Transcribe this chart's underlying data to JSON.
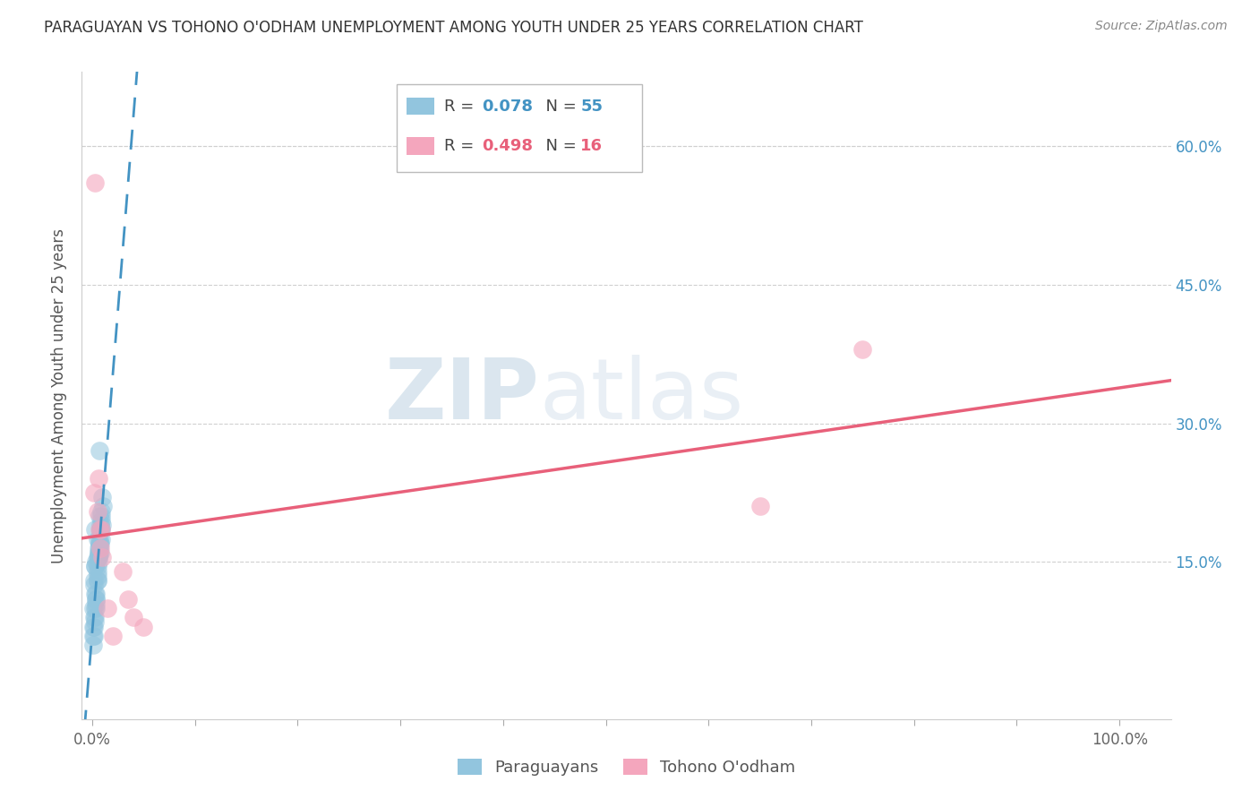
{
  "title": "PARAGUAYAN VS TOHONO O'ODHAM UNEMPLOYMENT AMONG YOUTH UNDER 25 YEARS CORRELATION CHART",
  "source": "Source: ZipAtlas.com",
  "xlabel_ticks": [
    "0.0%",
    "",
    "",
    "",
    "",
    "",
    "",
    "",
    "",
    "",
    "100.0%"
  ],
  "xlabel_vals": [
    0.0,
    0.1,
    0.2,
    0.3,
    0.4,
    0.5,
    0.6,
    0.7,
    0.8,
    0.9,
    1.0
  ],
  "ylabel_label": "Unemployment Among Youth under 25 years",
  "xlim": [
    -0.01,
    1.05
  ],
  "ylim": [
    -0.02,
    0.68
  ],
  "watermark_zip": "ZIP",
  "watermark_atlas": "atlas",
  "blue_R": 0.078,
  "blue_N": 55,
  "pink_R": 0.498,
  "pink_N": 16,
  "blue_color": "#92c5de",
  "pink_color": "#f4a6bd",
  "blue_line_color": "#4393c3",
  "pink_line_color": "#e8607a",
  "blue_text_color": "#4393c3",
  "pink_text_color": "#e8607a",
  "paraguayan_x": [
    0.005,
    0.003,
    0.007,
    0.004,
    0.002,
    0.006,
    0.008,
    0.01,
    0.003,
    0.005,
    0.001,
    0.004,
    0.006,
    0.003,
    0.007,
    0.009,
    0.002,
    0.004,
    0.005,
    0.006,
    0.007,
    0.008,
    0.009,
    0.003,
    0.002,
    0.001,
    0.004,
    0.001,
    0.003,
    0.005,
    0.006,
    0.007,
    0.008,
    0.009,
    0.011,
    0.002,
    0.003,
    0.004,
    0.005,
    0.006,
    0.007,
    0.008,
    0.009,
    0.002,
    0.003,
    0.004,
    0.005,
    0.005,
    0.006,
    0.007,
    0.008,
    0.009,
    0.01,
    0.001,
    0.007
  ],
  "paraguayan_y": [
    0.175,
    0.185,
    0.2,
    0.15,
    0.13,
    0.165,
    0.16,
    0.19,
    0.145,
    0.155,
    0.1,
    0.115,
    0.155,
    0.145,
    0.165,
    0.175,
    0.125,
    0.105,
    0.135,
    0.15,
    0.16,
    0.17,
    0.185,
    0.1,
    0.09,
    0.08,
    0.11,
    0.07,
    0.115,
    0.14,
    0.16,
    0.17,
    0.185,
    0.195,
    0.21,
    0.08,
    0.09,
    0.1,
    0.13,
    0.155,
    0.17,
    0.185,
    0.2,
    0.07,
    0.085,
    0.11,
    0.13,
    0.145,
    0.16,
    0.175,
    0.19,
    0.205,
    0.22,
    0.06,
    0.27
  ],
  "tohono_x": [
    0.003,
    0.002,
    0.005,
    0.007,
    0.008,
    0.006,
    0.009,
    0.75,
    0.65,
    0.01,
    0.015,
    0.03,
    0.04,
    0.05,
    0.035,
    0.02
  ],
  "tohono_y": [
    0.56,
    0.225,
    0.205,
    0.185,
    0.165,
    0.24,
    0.185,
    0.38,
    0.21,
    0.155,
    0.1,
    0.14,
    0.09,
    0.08,
    0.11,
    0.07
  ],
  "legend_label_blue": "Paraguayans",
  "legend_label_pink": "Tohono O'odham",
  "background_color": "#ffffff",
  "grid_color": "#d0d0d0",
  "right_ytick_labels": [
    "15.0%",
    "30.0%",
    "45.0%",
    "60.0%"
  ],
  "right_ytick_vals": [
    0.15,
    0.3,
    0.45,
    0.6
  ]
}
